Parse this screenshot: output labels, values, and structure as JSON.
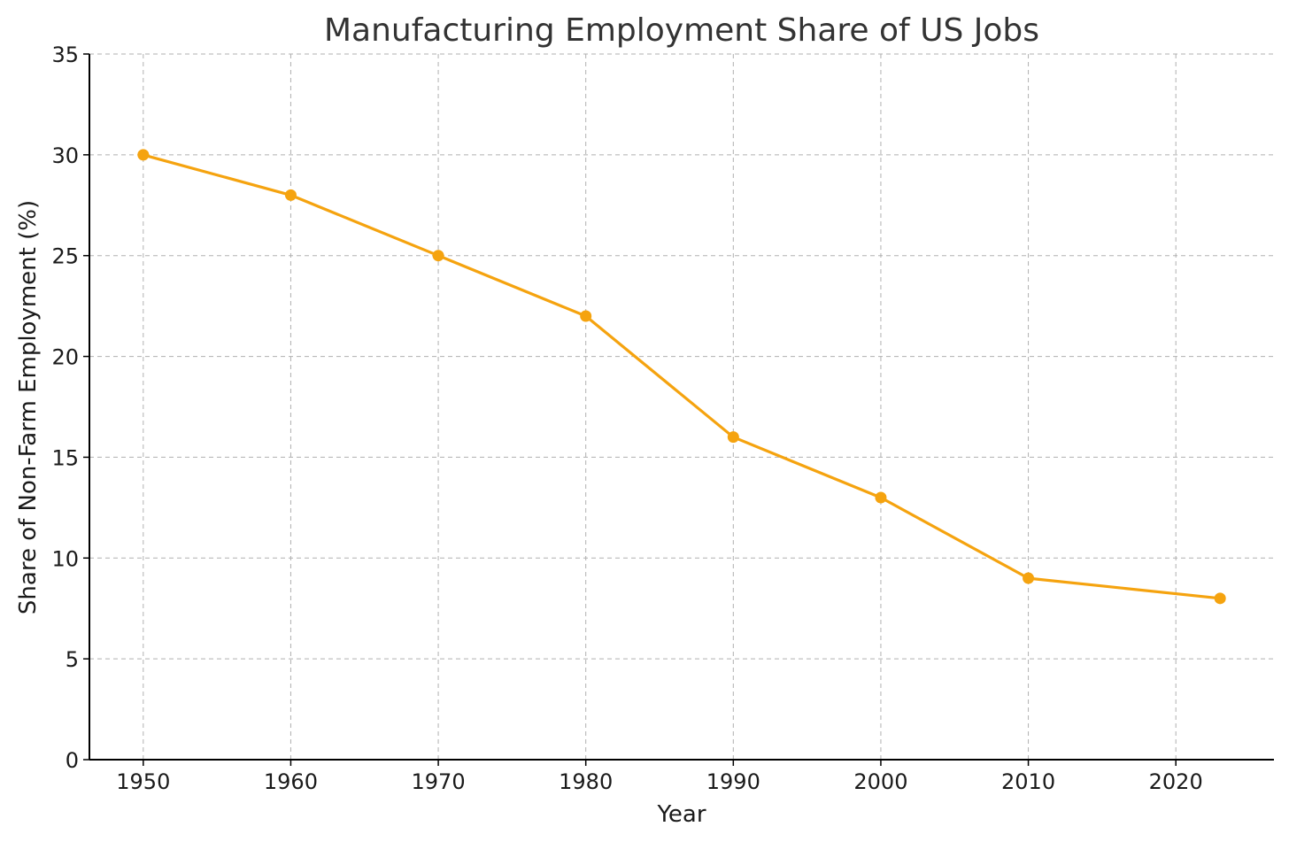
{
  "chart_data": {
    "type": "line",
    "title": "Manufacturing Employment Share of US Jobs",
    "xlabel": "Year",
    "ylabel": "Share of Non-Farm Employment (%)",
    "x": [
      1950,
      1960,
      1970,
      1980,
      1990,
      2000,
      2010,
      2023
    ],
    "series": [
      {
        "values": [
          30,
          28,
          25,
          22,
          16,
          13,
          9,
          8
        ],
        "color": "#f5a30f",
        "marker": "circle"
      }
    ],
    "xlim": [
      1946.35,
      2026.65
    ],
    "ylim": [
      0,
      35
    ],
    "xticks": [
      "1950",
      "1960",
      "1970",
      "1980",
      "1990",
      "2000",
      "2010",
      "2020"
    ],
    "yticks": [
      "0",
      "5",
      "10",
      "15",
      "20",
      "25",
      "30",
      "35"
    ],
    "grid": true,
    "grid_style": "dashed",
    "grid_color": "#b0b0b0",
    "axis_color": "#000000",
    "text_color": "#1a1a1a",
    "title_color": "#333333"
  }
}
